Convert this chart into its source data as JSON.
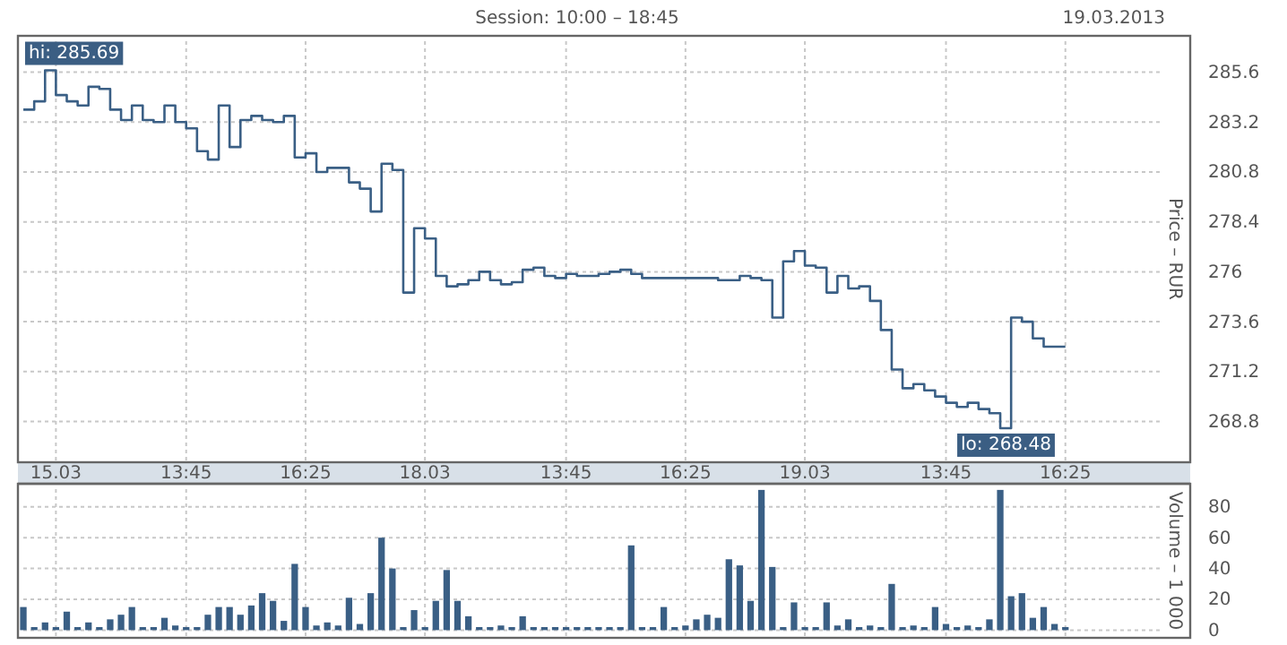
{
  "chart_data": [
    {
      "type": "step",
      "title": "Session: 10:00 – 18:45",
      "subtitle": "19.03.2013",
      "ylabel": "Price – RUR",
      "color": "#3a5f85",
      "grid": true,
      "categories": [
        null,
        null,
        null,
        "15.03",
        null,
        null,
        null,
        null,
        null,
        null,
        null,
        null,
        null,
        null,
        null,
        "13:45",
        null,
        null,
        null,
        null,
        null,
        null,
        null,
        null,
        null,
        null,
        "16:25",
        null,
        null,
        null,
        null,
        null,
        null,
        null,
        null,
        null,
        null,
        "18.03",
        null,
        null,
        null,
        null,
        null,
        null,
        null,
        null,
        null,
        null,
        null,
        null,
        "13:45",
        null,
        null,
        null,
        null,
        null,
        null,
        null,
        null,
        null,
        null,
        "16:25",
        null,
        null,
        null,
        null,
        null,
        null,
        null,
        null,
        null,
        null,
        "19.03",
        null,
        null,
        null,
        null,
        null,
        null,
        null,
        null,
        null,
        null,
        null,
        null,
        "13:45",
        null,
        null,
        null,
        null,
        null,
        null,
        null,
        null,
        null,
        null,
        "16:25",
        null,
        null,
        null,
        null,
        null,
        null,
        null,
        null,
        null,
        null,
        null
      ],
      "values": [
        283.8,
        284.2,
        285.69,
        284.5,
        284.2,
        284.0,
        284.9,
        284.8,
        283.8,
        283.3,
        284.0,
        283.3,
        283.2,
        284.0,
        283.2,
        282.9,
        281.8,
        281.4,
        284.0,
        282.0,
        283.3,
        283.5,
        283.3,
        283.2,
        283.5,
        281.5,
        281.7,
        280.8,
        281.0,
        281.0,
        280.3,
        280.0,
        278.9,
        281.2,
        280.9,
        275.0,
        278.1,
        277.6,
        275.8,
        275.3,
        275.4,
        275.6,
        276.0,
        275.6,
        275.4,
        275.5,
        276.1,
        276.2,
        275.8,
        275.7,
        275.9,
        275.8,
        275.8,
        275.9,
        276.0,
        276.1,
        275.9,
        275.7,
        275.7,
        275.7,
        275.7,
        275.7,
        275.7,
        275.7,
        275.6,
        275.6,
        275.8,
        275.7,
        275.6,
        273.8,
        276.5,
        277.0,
        276.3,
        276.2,
        275.0,
        275.8,
        275.2,
        275.3,
        274.6,
        273.2,
        271.3,
        270.4,
        270.6,
        270.3,
        270.0,
        269.7,
        269.5,
        269.7,
        269.4,
        269.2,
        268.48,
        273.8,
        273.6,
        272.8,
        272.4,
        272.4,
        272.4,
        null,
        null,
        null,
        null,
        null,
        null,
        null,
        null,
        null,
        null,
        null
      ],
      "ylim": [
        266.84,
        287.35
      ],
      "yticks": [
        268.8,
        271.2,
        273.6,
        276,
        278.4,
        280.8,
        283.2,
        285.6
      ],
      "annotations": [
        "hi: 285.69",
        "lo: 268.48"
      ]
    },
    {
      "type": "bar",
      "ylabel": "Volume – 1 000",
      "color": "#3a5f85",
      "grid": true,
      "tick_labels": "y",
      "categories": [
        null,
        null,
        null,
        null,
        null,
        null,
        null,
        null,
        null,
        null,
        null,
        null,
        null,
        null,
        null,
        null,
        null,
        null,
        null,
        null,
        null,
        null,
        null,
        null,
        null,
        null,
        null,
        null,
        null,
        null,
        null,
        null,
        null,
        null,
        null,
        null,
        null,
        null,
        null,
        null,
        null,
        null,
        null,
        null,
        null,
        null,
        null,
        null,
        null,
        null,
        null,
        null,
        null,
        null,
        null,
        null,
        null,
        null,
        null,
        null,
        null,
        null,
        null,
        null,
        null,
        null,
        null,
        null,
        null,
        null,
        null,
        null,
        null,
        null,
        null,
        null,
        null,
        null,
        null,
        null,
        null,
        null,
        null,
        null,
        null,
        null,
        null,
        null,
        null,
        null,
        null,
        null,
        null,
        null,
        null,
        null,
        null,
        null,
        null,
        null,
        null,
        null,
        null,
        null,
        null,
        null,
        null,
        null
      ],
      "values": [
        15,
        2,
        5,
        2,
        12,
        2,
        5,
        2,
        7,
        10,
        15,
        2,
        2,
        8,
        3,
        2,
        2,
        10,
        15,
        15,
        10,
        16,
        24,
        19,
        6,
        43,
        15,
        3,
        5,
        3,
        21,
        4,
        24,
        60,
        40,
        2,
        13,
        2,
        19,
        39,
        19,
        9,
        2,
        2,
        3,
        2,
        9,
        2,
        2,
        2,
        2,
        2,
        2,
        2,
        2,
        2,
        55,
        2,
        2,
        15,
        2,
        3,
        7,
        10,
        8,
        46,
        42,
        19,
        91,
        41,
        2,
        18,
        2,
        2,
        18,
        3,
        7,
        2,
        3,
        2,
        30,
        2,
        3,
        2,
        15,
        4,
        2,
        3,
        2,
        7,
        91,
        22,
        24,
        8,
        15,
        4,
        2,
        null,
        null,
        null,
        null,
        null,
        null,
        null,
        null,
        null,
        null,
        null
      ],
      "ylim": [
        -5,
        95
      ],
      "yticks": [
        0,
        20,
        40,
        60,
        80
      ]
    }
  ]
}
